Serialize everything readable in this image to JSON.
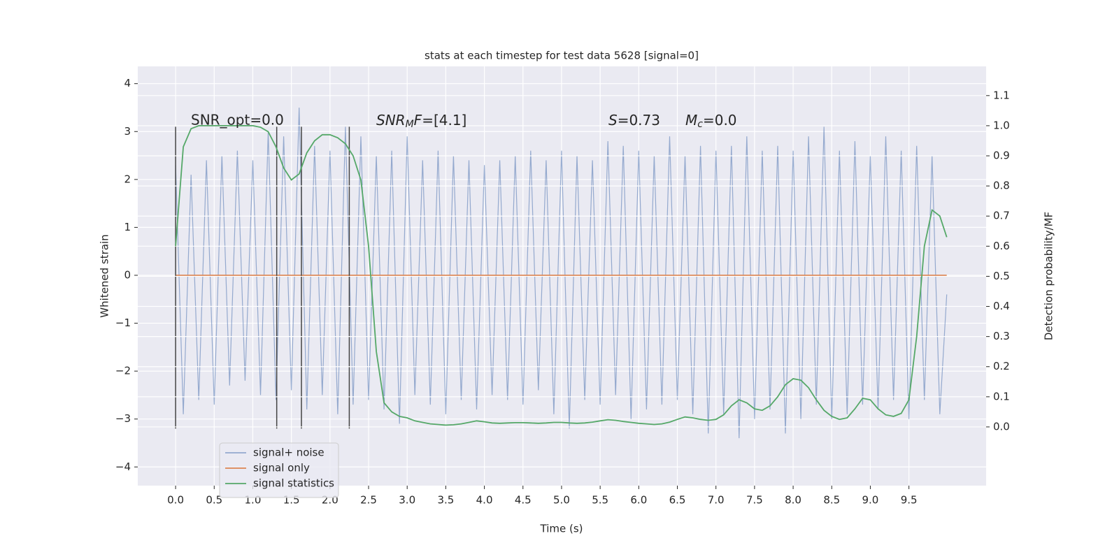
{
  "chart_data": {
    "type": "line",
    "title": "stats at each timestep for test data 5628 [signal=0]",
    "xlabel": "Time (s)",
    "ylabel": "Whitened strain",
    "y2label": "Detection probability/MF",
    "x": [
      0,
      0.1,
      0.2,
      0.3,
      0.4,
      0.5,
      0.6,
      0.7,
      0.8,
      0.9,
      1.0,
      1.1,
      1.2,
      1.3,
      1.4,
      1.5,
      1.6,
      1.7,
      1.8,
      1.9,
      2.0,
      2.1,
      2.2,
      2.3,
      2.4,
      2.5,
      2.6,
      2.7,
      2.8,
      2.9,
      3.0,
      3.1,
      3.2,
      3.3,
      3.4,
      3.5,
      3.6,
      3.7,
      3.8,
      3.9,
      4.0,
      4.1,
      4.2,
      4.3,
      4.4,
      4.5,
      4.6,
      4.7,
      4.8,
      4.9,
      5.0,
      5.1,
      5.2,
      5.3,
      5.4,
      5.5,
      5.6,
      5.7,
      5.8,
      5.9,
      6.0,
      6.1,
      6.2,
      6.3,
      6.4,
      6.5,
      6.6,
      6.7,
      6.8,
      6.9,
      7.0,
      7.1,
      7.2,
      7.3,
      7.4,
      7.5,
      7.6,
      7.7,
      7.8,
      7.9,
      8.0,
      8.1,
      8.2,
      8.3,
      8.4,
      8.5,
      8.6,
      8.7,
      8.8,
      8.9,
      9.0,
      9.1,
      9.2,
      9.3,
      9.4,
      9.5,
      9.6,
      9.7,
      9.8,
      9.9,
      9.99
    ],
    "series": [
      {
        "name": "signal+ noise",
        "color": "#4c72b0",
        "values": [
          2.3,
          -2.9,
          2.1,
          -2.6,
          2.4,
          -2.7,
          2.5,
          -2.3,
          2.6,
          -2.2,
          2.4,
          -2.5,
          3.0,
          -2.6,
          2.9,
          -2.4,
          3.5,
          -2.8,
          2.7,
          -2.5,
          2.6,
          -2.9,
          3.1,
          -2.7,
          2.9,
          -2.6,
          2.5,
          -2.8,
          2.6,
          -3.1,
          2.9,
          -2.5,
          2.4,
          -2.7,
          2.6,
          -2.9,
          2.5,
          -2.6,
          2.4,
          -2.8,
          2.3,
          -2.5,
          2.4,
          -2.6,
          2.5,
          -2.7,
          2.6,
          -2.4,
          2.4,
          -2.9,
          2.6,
          -3.2,
          2.5,
          -2.6,
          2.4,
          -2.7,
          2.8,
          -2.5,
          2.7,
          -3.0,
          2.6,
          -2.8,
          2.5,
          -2.7,
          2.9,
          -2.6,
          2.5,
          -2.9,
          2.7,
          -3.3,
          2.6,
          -2.9,
          2.7,
          -3.4,
          2.9,
          -3.0,
          2.6,
          -2.8,
          2.7,
          -3.3,
          2.6,
          -3.0,
          2.9,
          -2.7,
          3.1,
          -3.0,
          2.6,
          -2.9,
          2.8,
          -2.7,
          2.5,
          -2.8,
          2.9,
          -2.6,
          2.6,
          -3.0,
          2.7,
          -2.6,
          2.5,
          -2.9,
          -0.4
        ]
      },
      {
        "name": "signal only",
        "color": "#dd8452",
        "values": [
          0,
          0,
          0,
          0,
          0,
          0,
          0,
          0,
          0,
          0,
          0,
          0,
          0,
          0,
          0,
          0,
          0,
          0,
          0,
          0,
          0,
          0,
          0,
          0,
          0,
          0,
          0,
          0,
          0,
          0,
          0,
          0,
          0,
          0,
          0,
          0,
          0,
          0,
          0,
          0,
          0,
          0,
          0,
          0,
          0,
          0,
          0,
          0,
          0,
          0,
          0,
          0,
          0,
          0,
          0,
          0,
          0,
          0,
          0,
          0,
          0,
          0,
          0,
          0,
          0,
          0,
          0,
          0,
          0,
          0,
          0,
          0,
          0,
          0,
          0,
          0,
          0,
          0,
          0,
          0,
          0,
          0,
          0,
          0,
          0,
          0,
          0,
          0,
          0,
          0,
          0,
          0,
          0,
          0,
          0,
          0,
          0,
          0,
          0,
          0,
          0
        ]
      },
      {
        "name": "signal statistics",
        "color": "#55a868",
        "axis": "y2",
        "values": [
          0.6,
          0.93,
          0.99,
          1.0,
          1.0,
          1.0,
          1.0,
          1.0,
          1.0,
          1.0,
          1.0,
          0.995,
          0.98,
          0.93,
          0.86,
          0.82,
          0.84,
          0.91,
          0.95,
          0.97,
          0.97,
          0.96,
          0.94,
          0.9,
          0.82,
          0.6,
          0.25,
          0.08,
          0.05,
          0.035,
          0.03,
          0.02,
          0.015,
          0.01,
          0.008,
          0.006,
          0.007,
          0.01,
          0.015,
          0.02,
          0.017,
          0.013,
          0.012,
          0.013,
          0.014,
          0.014,
          0.013,
          0.012,
          0.013,
          0.015,
          0.015,
          0.013,
          0.012,
          0.013,
          0.016,
          0.02,
          0.024,
          0.022,
          0.018,
          0.015,
          0.012,
          0.01,
          0.008,
          0.01,
          0.016,
          0.025,
          0.033,
          0.03,
          0.025,
          0.022,
          0.025,
          0.04,
          0.07,
          0.09,
          0.08,
          0.06,
          0.055,
          0.07,
          0.1,
          0.14,
          0.16,
          0.155,
          0.13,
          0.09,
          0.055,
          0.035,
          0.025,
          0.03,
          0.06,
          0.095,
          0.09,
          0.06,
          0.04,
          0.035,
          0.045,
          0.09,
          0.3,
          0.6,
          0.72,
          0.7,
          0.63
        ]
      }
    ],
    "vlines": {
      "x": [
        0,
        1.31,
        1.63,
        2.25
      ],
      "ymin": -3.2,
      "ymax": 3.1,
      "color": "#444444"
    },
    "annotations": [
      {
        "text": "SNR_opt=0.0",
        "math": false
      },
      {
        "text": "SNR_MF=[4.1]",
        "math": true
      },
      {
        "text": "S=0.73",
        "math": true
      },
      {
        "text": "M_c=0.0",
        "math": true
      }
    ],
    "xlim": [
      -0.49,
      10.5
    ],
    "ylim": [
      -4.39,
      4.36
    ],
    "y2lim": [
      -0.195,
      1.197
    ],
    "xticks": [
      {
        "value": 0,
        "label": "0.0"
      },
      {
        "value": 0.5,
        "label": "0.5"
      },
      {
        "value": 1,
        "label": "1.0"
      },
      {
        "value": 1.5,
        "label": "1.5"
      },
      {
        "value": 2,
        "label": "2.0"
      },
      {
        "value": 2.5,
        "label": "2.5"
      },
      {
        "value": 3,
        "label": "3.0"
      },
      {
        "value": 3.5,
        "label": "3.5"
      },
      {
        "value": 4,
        "label": "4.0"
      },
      {
        "value": 4.5,
        "label": "4.5"
      },
      {
        "value": 5,
        "label": "5.0"
      },
      {
        "value": 5.5,
        "label": "5.5"
      },
      {
        "value": 6,
        "label": "6.0"
      },
      {
        "value": 6.5,
        "label": "6.5"
      },
      {
        "value": 7,
        "label": "7.0"
      },
      {
        "value": 7.5,
        "label": "7.5"
      },
      {
        "value": 8,
        "label": "8.0"
      },
      {
        "value": 8.5,
        "label": "8.5"
      },
      {
        "value": 9,
        "label": "9.0"
      },
      {
        "value": 9.5,
        "label": "9.5"
      }
    ],
    "yticks": [
      {
        "value": -4,
        "label": "−4"
      },
      {
        "value": -3,
        "label": "−3"
      },
      {
        "value": -2,
        "label": "−2"
      },
      {
        "value": -1,
        "label": "−1"
      },
      0,
      1,
      2,
      3,
      4
    ],
    "y2ticks": [
      {
        "value": 0,
        "label": "0.0"
      },
      {
        "value": 0.1,
        "label": "0.1"
      },
      {
        "value": 0.2,
        "label": "0.2"
      },
      {
        "value": 0.3,
        "label": "0.3"
      },
      {
        "value": 0.4,
        "label": "0.4"
      },
      {
        "value": 0.5,
        "label": "0.5"
      },
      {
        "value": 0.6,
        "label": "0.6"
      },
      {
        "value": 0.7,
        "label": "0.7"
      },
      {
        "value": 0.8,
        "label": "0.8"
      },
      {
        "value": 0.9,
        "label": "0.9"
      },
      {
        "value": 1,
        "label": "1.0"
      },
      {
        "value": 1.1,
        "label": "1.1"
      }
    ],
    "grid": true,
    "legend": "lower left"
  }
}
